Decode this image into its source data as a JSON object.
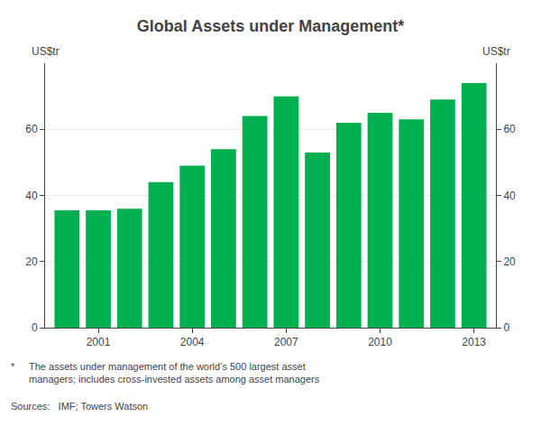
{
  "chart_data": {
    "type": "bar",
    "title": "Global Assets under Management*",
    "ylabel": "US$tr",
    "y2label": "US$tr",
    "x": [
      2000,
      2001,
      2002,
      2003,
      2004,
      2005,
      2006,
      2007,
      2008,
      2009,
      2010,
      2011,
      2012,
      2013
    ],
    "values": [
      35.5,
      35.5,
      36.0,
      44.0,
      49.0,
      54.0,
      64.0,
      70.0,
      53.0,
      62.0,
      65.0,
      63.0,
      69.0,
      74.0
    ],
    "color": "#00b050",
    "xlim": [
      1999.3,
      2013.7
    ],
    "xticks": [
      2001,
      2004,
      2007,
      2010,
      2013
    ],
    "ylim": [
      0,
      80
    ],
    "yticks": [
      0,
      20,
      40,
      60
    ],
    "y2lim": [
      0,
      80
    ],
    "y2ticks": [
      0,
      20,
      40,
      60
    ],
    "grid": true,
    "annotations": [
      "*",
      "The assets under management of the world’s 500 largest asset\nmanagers; includes cross-invested assets among asset managers",
      "Sources:   IMF; Towers Watson"
    ]
  }
}
